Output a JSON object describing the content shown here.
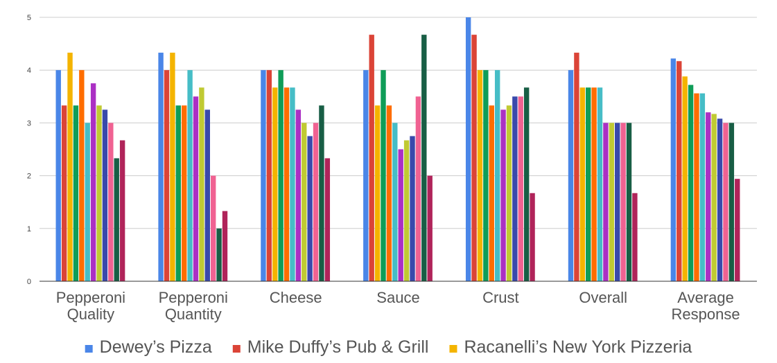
{
  "chart_data": {
    "type": "bar",
    "title": "",
    "xlabel": "",
    "ylabel": "",
    "ylim": [
      0,
      5
    ],
    "yticks": [
      0,
      1,
      2,
      3,
      4,
      5
    ],
    "grid": true,
    "legend_position": "bottom",
    "categories": [
      [
        "Pepperoni",
        "Quality"
      ],
      [
        "Pepperoni",
        "Quantity"
      ],
      [
        "Cheese"
      ],
      [
        "Sauce"
      ],
      [
        "Crust"
      ],
      [
        "Overall"
      ],
      [
        "Average",
        "Response"
      ]
    ],
    "series": [
      {
        "name": "Dewey’s Pizza",
        "color": "#4a86e8",
        "values": [
          4.0,
          4.33,
          4.0,
          4.0,
          5.0,
          4.0,
          4.22
        ]
      },
      {
        "name": "Mike Duffy’s Pub & Grill",
        "color": "#db4437",
        "values": [
          3.33,
          4.0,
          4.0,
          4.67,
          4.67,
          4.33,
          4.17
        ]
      },
      {
        "name": "Racanelli’s New York Pizzeria",
        "color": "#f4b400",
        "values": [
          4.33,
          4.33,
          3.67,
          3.33,
          4.0,
          3.67,
          3.88
        ]
      },
      {
        "color": "#0f9d58",
        "values": [
          3.33,
          3.33,
          4.0,
          4.0,
          4.0,
          3.67,
          3.72
        ]
      },
      {
        "color": "#ff6d00",
        "values": [
          4.0,
          3.33,
          3.67,
          3.33,
          3.33,
          3.67,
          3.56
        ]
      },
      {
        "color": "#46bdc6",
        "values": [
          3.0,
          4.0,
          3.67,
          3.0,
          4.0,
          3.67,
          3.56
        ]
      },
      {
        "color": "#ab30c4",
        "values": [
          3.75,
          3.5,
          3.25,
          2.5,
          3.25,
          3.0,
          3.2
        ]
      },
      {
        "color": "#c0ca33",
        "values": [
          3.33,
          3.67,
          3.0,
          2.67,
          3.33,
          3.0,
          3.17
        ]
      },
      {
        "color": "#3949ab",
        "values": [
          3.25,
          3.25,
          2.75,
          2.75,
          3.5,
          3.0,
          3.08
        ]
      },
      {
        "color": "#f06292",
        "values": [
          3.0,
          2.0,
          3.0,
          3.5,
          3.5,
          3.0,
          3.0
        ]
      },
      {
        "color": "#185e45",
        "values": [
          2.33,
          1.0,
          3.33,
          4.67,
          3.67,
          3.0,
          3.0
        ]
      },
      {
        "color": "#b0245a",
        "values": [
          2.67,
          1.33,
          2.33,
          2.0,
          1.67,
          1.67,
          1.94
        ]
      }
    ]
  }
}
